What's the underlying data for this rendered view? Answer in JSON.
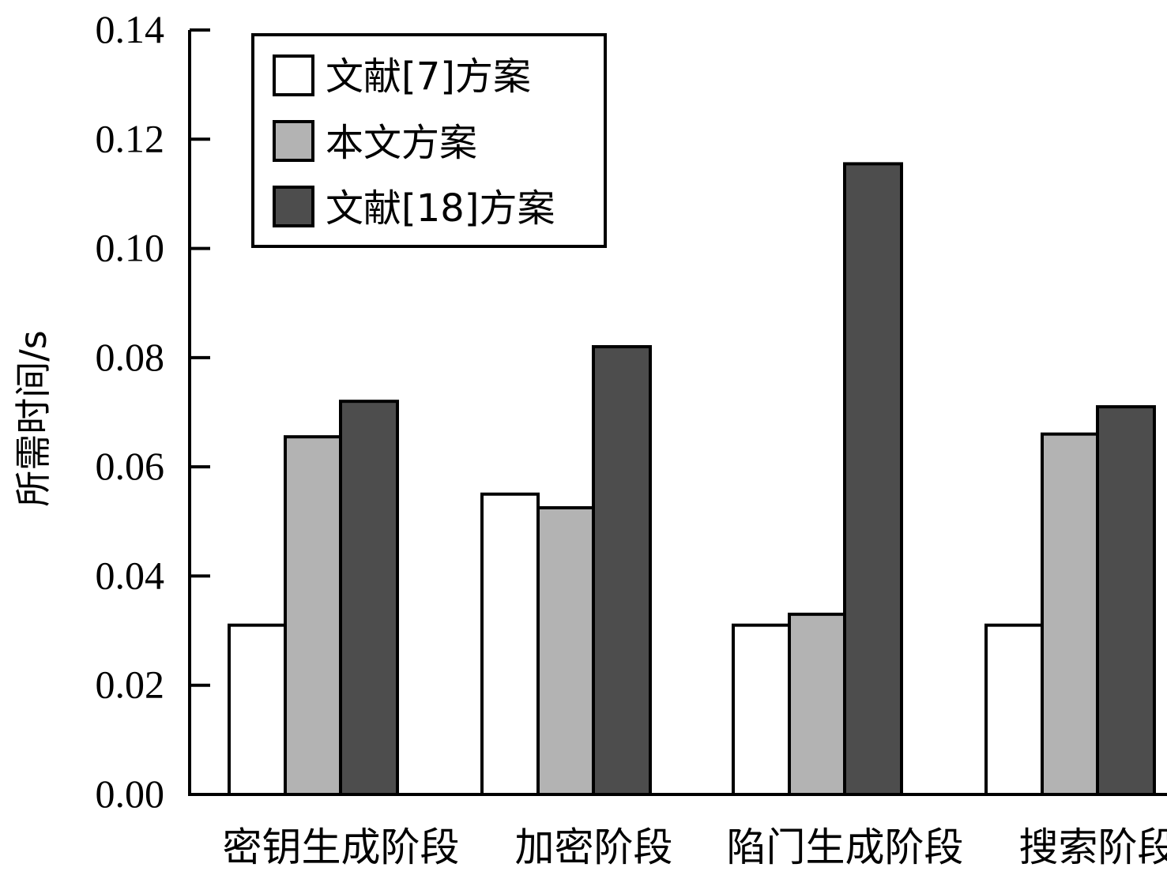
{
  "chart_data": {
    "type": "bar",
    "title": "",
    "xlabel": "",
    "ylabel": "所需时间/s",
    "ylim": [
      0,
      0.14
    ],
    "yticks": [
      "0.00",
      "0.02",
      "0.04",
      "0.06",
      "0.08",
      "0.10",
      "0.12",
      "0.14"
    ],
    "categories": [
      "密钥生成阶段",
      "加密阶段",
      "陷门生成阶段",
      "搜索阶段"
    ],
    "series": [
      {
        "name": "文献[7]方案",
        "color": "#ffffff",
        "values": [
          0.031,
          0.055,
          0.031,
          0.031
        ]
      },
      {
        "name": "本文方案",
        "color": "#b3b3b3",
        "values": [
          0.0655,
          0.0525,
          0.033,
          0.066
        ]
      },
      {
        "name": "文献[18]方案",
        "color": "#4d4d4d",
        "values": [
          0.072,
          0.082,
          0.1155,
          0.071
        ]
      }
    ],
    "legend": {
      "position": "top-left",
      "frame": true
    },
    "grid": false
  }
}
